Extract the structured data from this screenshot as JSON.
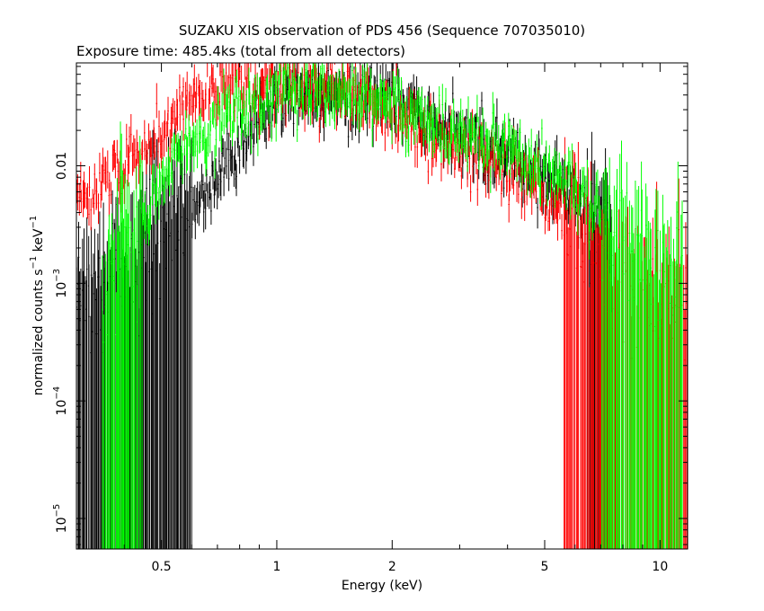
{
  "chart_data": {
    "type": "scatter",
    "title": "SUZAKU XIS observation of PDS 456 (Sequence 707035010)",
    "subtitle": "Exposure time: 485.4ks (total from all detectors)",
    "xlabel": "Energy (keV)",
    "ylabel_main": "normalized counts s",
    "ylabel_exp1": "−1",
    "ylabel_mid": " keV",
    "ylabel_exp2": "−1",
    "xscale": "log",
    "yscale": "log",
    "xlim": [
      0.3,
      11.8
    ],
    "ylim": [
      5.5e-06,
      0.075
    ],
    "grid": false,
    "legend": "none",
    "x_ticks": [
      {
        "value": 0.5,
        "label": "0.5"
      },
      {
        "value": 1,
        "label": "1"
      },
      {
        "value": 2,
        "label": "2"
      },
      {
        "value": 5,
        "label": "5"
      },
      {
        "value": 10,
        "label": "10"
      }
    ],
    "x_minor_ticks": [
      0.3,
      0.4,
      0.6,
      0.7,
      0.8,
      0.9,
      3,
      4,
      6,
      7,
      8,
      9
    ],
    "y_ticks": [
      {
        "value": 1e-05,
        "base": "10",
        "exp": "−5",
        "label": ""
      },
      {
        "value": 0.0001,
        "base": "10",
        "exp": "−4",
        "label": ""
      },
      {
        "value": 0.001,
        "base": "10",
        "exp": "−3",
        "label": ""
      },
      {
        "value": 0.01,
        "base": "",
        "exp": "",
        "label": "0.01"
      }
    ],
    "series": [
      {
        "color": "#ff0000",
        "energy_keV": [
          0.3,
          0.4,
          0.5,
          0.6,
          0.7,
          0.8,
          0.9,
          1.0,
          1.2,
          1.5,
          2.0,
          2.5,
          3.0,
          4.0,
          5.0,
          6.0,
          7.0,
          8.0,
          9.0,
          10.0,
          11.8
        ],
        "counts": [
          0.005,
          0.01,
          0.02,
          0.035,
          0.045,
          0.055,
          0.05,
          0.05,
          0.05,
          0.045,
          0.03,
          0.02,
          0.015,
          0.01,
          0.006,
          0.003,
          0.0012,
          0.0008,
          0.0007,
          0.0007,
          0.0008
        ]
      },
      {
        "color": "#00ff00",
        "energy_keV": [
          0.35,
          0.4,
          0.5,
          0.6,
          0.7,
          0.8,
          0.9,
          1.0,
          1.2,
          1.5,
          2.0,
          2.5,
          3.0,
          4.0,
          5.0,
          6.0,
          7.0,
          8.0,
          9.0,
          10.0,
          11.5
        ],
        "counts": [
          0.0005,
          0.002,
          0.008,
          0.015,
          0.025,
          0.03,
          0.035,
          0.04,
          0.045,
          0.045,
          0.035,
          0.025,
          0.02,
          0.014,
          0.01,
          0.006,
          0.004,
          0.002,
          0.0015,
          0.0012,
          0.001
        ]
      },
      {
        "color": "#000000",
        "energy_keV": [
          0.3,
          0.4,
          0.5,
          0.6,
          0.7,
          0.8,
          0.9,
          1.0,
          1.2,
          1.5,
          2.0,
          2.5,
          3.0,
          4.0,
          5.0,
          6.0,
          7.0,
          7.5
        ],
        "counts": [
          0.0008,
          0.001,
          0.002,
          0.004,
          0.008,
          0.015,
          0.025,
          0.035,
          0.042,
          0.042,
          0.033,
          0.025,
          0.018,
          0.012,
          0.008,
          0.005,
          0.003,
          0.0025
        ]
      }
    ]
  }
}
